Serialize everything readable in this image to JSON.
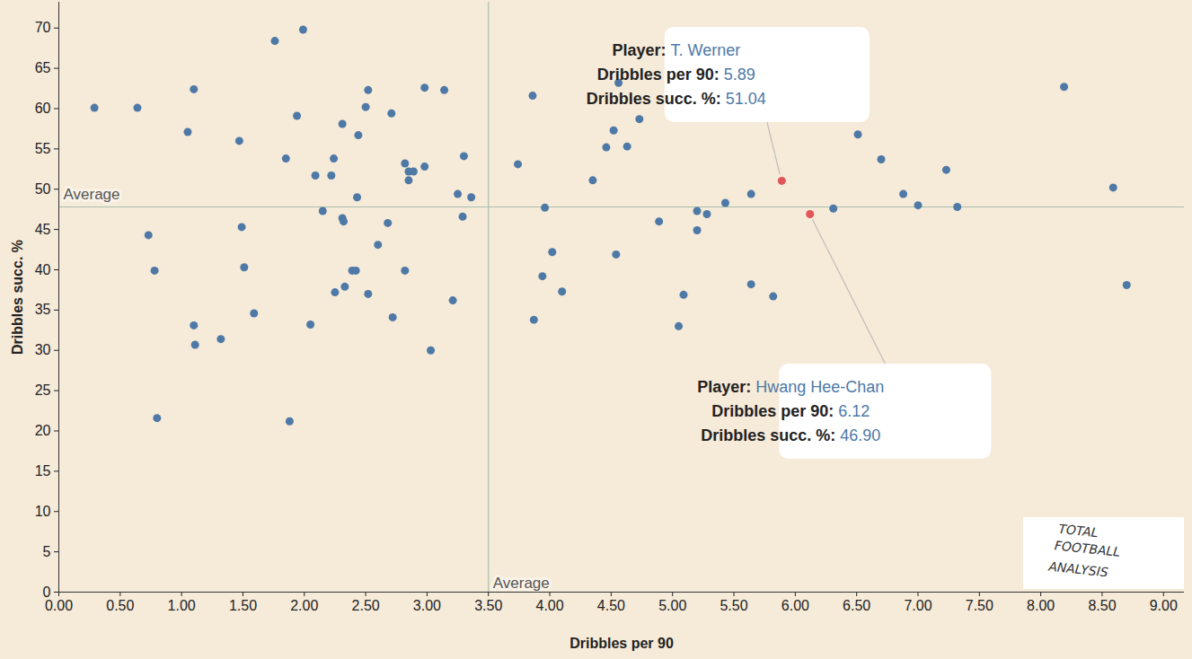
{
  "chart_data": {
    "type": "scatter",
    "x_label": "Dribbles per 90",
    "y_label": "Dribbles succ. %",
    "color": "#4e79a7",
    "x": [
      0.29,
      0.64,
      1.1,
      1.05,
      1.76,
      1.99,
      1.47,
      1.85,
      1.94,
      0.73,
      0.78,
      1.49,
      1.51,
      1.59,
      1.1,
      1.11,
      1.32,
      0.8,
      1.88,
      2.09,
      2.15,
      2.22,
      2.24,
      2.31,
      2.44,
      2.5,
      2.52,
      2.43,
      2.31,
      2.32,
      2.6,
      2.39,
      2.42,
      2.33,
      2.25,
      2.52,
      2.05,
      2.71,
      2.68,
      2.72,
      2.82,
      2.85,
      2.89,
      2.85,
      2.98,
      2.98,
      3.14,
      2.82,
      3.03,
      3.21,
      3.25,
      3.36,
      3.3,
      3.29,
      3.74,
      3.86,
      3.87,
      3.96,
      4.02,
      3.94,
      4.1,
      4.35,
      4.46,
      4.52,
      4.56,
      4.63,
      4.73,
      4.54,
      4.89,
      5.09,
      5.05,
      5.2,
      5.2,
      5.28,
      5.43,
      5.64,
      5.64,
      5.82,
      6.31,
      6.51,
      6.7,
      6.88,
      7.0,
      7.23,
      7.32,
      8.19,
      8.59,
      8.7
    ],
    "values": [
      60.1,
      60.1,
      62.4,
      57.1,
      68.4,
      69.8,
      56.0,
      53.8,
      59.1,
      44.3,
      39.9,
      45.3,
      40.3,
      34.6,
      33.1,
      30.7,
      31.4,
      21.6,
      21.2,
      51.7,
      47.3,
      51.7,
      53.8,
      58.1,
      56.7,
      60.2,
      62.3,
      49.0,
      46.4,
      46.0,
      43.1,
      39.9,
      39.9,
      37.9,
      37.2,
      37.0,
      33.2,
      59.4,
      45.8,
      34.1,
      53.2,
      52.2,
      52.2,
      51.1,
      52.8,
      62.6,
      62.3,
      39.9,
      30.0,
      36.2,
      49.4,
      49.0,
      54.1,
      46.6,
      53.1,
      61.6,
      33.8,
      47.7,
      42.2,
      39.2,
      37.3,
      51.1,
      55.2,
      57.3,
      63.2,
      55.3,
      58.7,
      41.9,
      46.0,
      36.9,
      33.0,
      47.3,
      44.9,
      46.9,
      48.3,
      49.4,
      38.2,
      36.7,
      47.6,
      56.8,
      53.7,
      49.4,
      48.0,
      52.4,
      47.8,
      62.7,
      50.2,
      38.1
    ],
    "highlight_color": "#e15759",
    "highlights": [
      {
        "name": "T. Werner",
        "x": 5.89,
        "y": 51.04,
        "x_label": "5.89",
        "y_label": "51.04"
      },
      {
        "name": "Hwang Hee-Chan",
        "x": 6.12,
        "y": 46.9,
        "x_label": "6.12",
        "y_label": "46.90"
      }
    ],
    "tooltip_fields": [
      "Player:",
      "Dribbles per 90:",
      "Dribbles succ. %:"
    ],
    "reference_lines": {
      "x": 3.5,
      "y": 47.8,
      "label": "Average"
    },
    "watermark": [
      "TOTAL",
      "FOOTBALL",
      "ANALYSIS"
    ],
    "xlim": [
      0,
      9.17
    ],
    "ylim": [
      0,
      73.2
    ],
    "xticks": [
      {
        "value": 0,
        "label": "0.00"
      },
      {
        "value": 0.5,
        "label": "0.50"
      },
      {
        "value": 1,
        "label": "1.00"
      },
      {
        "value": 1.5,
        "label": "1.50"
      },
      {
        "value": 2,
        "label": "2.00"
      },
      {
        "value": 2.5,
        "label": "2.50"
      },
      {
        "value": 3,
        "label": "3.00"
      },
      {
        "value": 3.5,
        "label": "3.50"
      },
      {
        "value": 4,
        "label": "4.00"
      },
      {
        "value": 4.5,
        "label": "4.50"
      },
      {
        "value": 5,
        "label": "5.00"
      },
      {
        "value": 5.5,
        "label": "5.50"
      },
      {
        "value": 6,
        "label": "6.00"
      },
      {
        "value": 6.5,
        "label": "6.50"
      },
      {
        "value": 7,
        "label": "7.00"
      },
      {
        "value": 7.5,
        "label": "7.50"
      },
      {
        "value": 8,
        "label": "8.00"
      },
      {
        "value": 8.5,
        "label": "8.50"
      },
      {
        "value": 9,
        "label": "9.00"
      }
    ],
    "yticks": [
      0,
      5,
      10,
      15,
      20,
      25,
      30,
      35,
      40,
      45,
      50,
      55,
      60,
      65,
      70
    ],
    "grid": false
  }
}
